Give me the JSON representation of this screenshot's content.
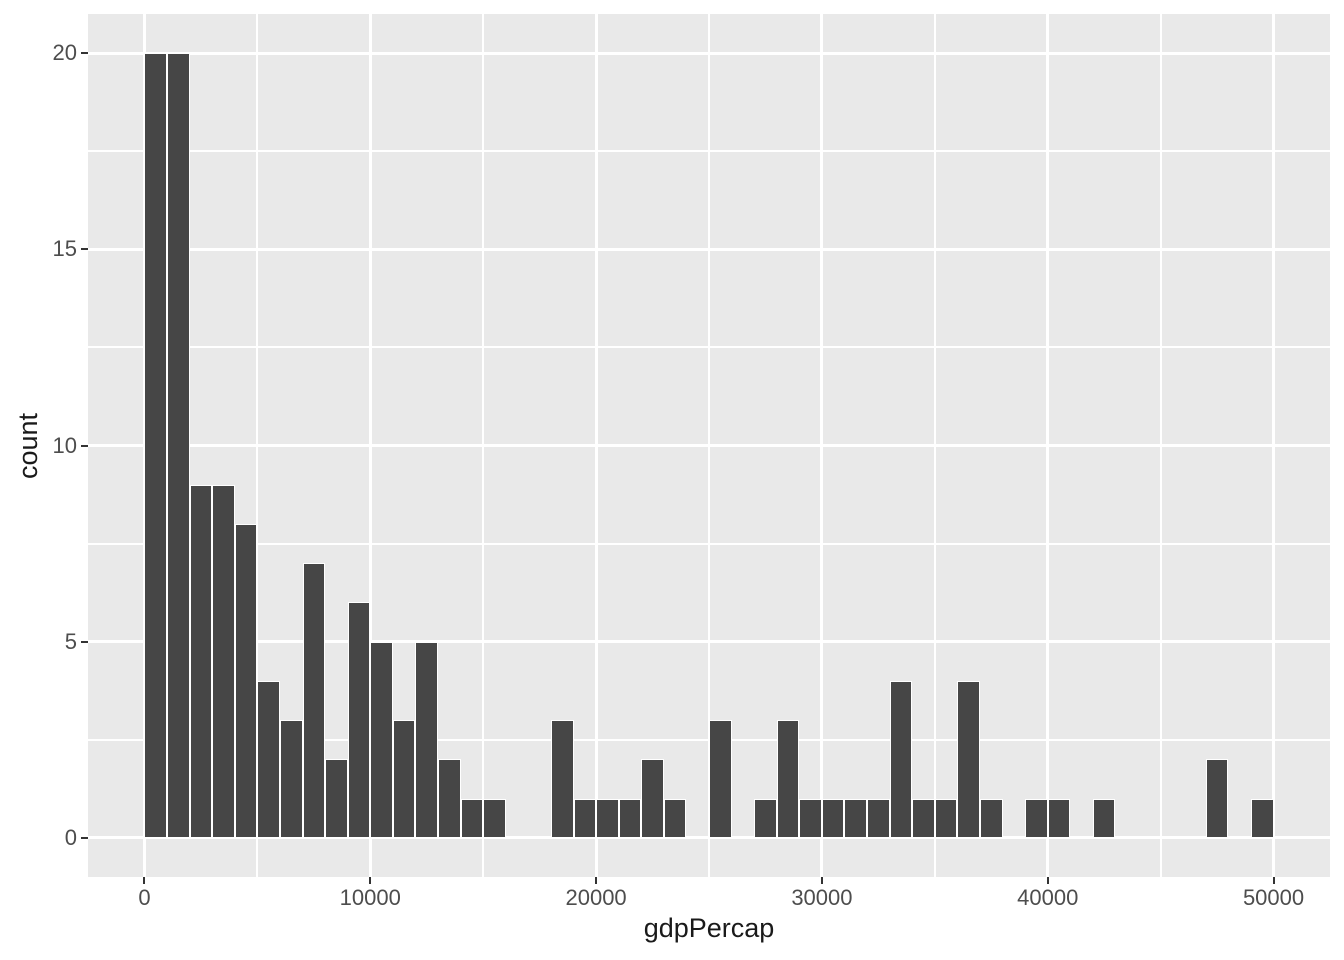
{
  "figure": {
    "background": "#FFFFFF",
    "panel_background": "#E9E9E9",
    "bar_fill": "#464646",
    "bar_stroke": "#FFFFFF",
    "gridline_color": "#FFFFFF",
    "tick_mark_color": "#333333",
    "tick_label_color": "#4D4D4D",
    "axis_title_color": "#1A1A1A"
  },
  "chart_data": {
    "type": "bar",
    "subtype": "histogram",
    "title": "",
    "xlabel": "gdpPercap",
    "ylabel": "count",
    "grid": "on",
    "legend": "none",
    "bin_start": 0,
    "bin_width": 1000,
    "bin_counts": [
      20,
      20,
      9,
      9,
      8,
      4,
      3,
      7,
      2,
      6,
      5,
      3,
      5,
      2,
      1,
      1,
      0,
      0,
      3,
      1,
      1,
      1,
      2,
      1,
      0,
      3,
      0,
      1,
      3,
      1,
      1,
      1,
      1,
      4,
      1,
      1,
      4,
      1,
      0,
      1,
      1,
      0,
      1,
      0,
      0,
      0,
      0,
      2,
      0,
      1
    ],
    "total_count": 142,
    "xlim": [
      0,
      50000
    ],
    "ylim": [
      0,
      20
    ],
    "expansion": 0.05,
    "x_major_ticks": [
      0,
      10000,
      20000,
      30000,
      40000,
      50000
    ],
    "x_tick_labels": [
      "0",
      "10000",
      "20000",
      "30000",
      "40000",
      "50000"
    ],
    "x_minor_ticks": [
      5000,
      15000,
      25000,
      35000,
      45000
    ],
    "y_major_ticks": [
      0,
      5,
      10,
      15,
      20
    ],
    "y_tick_labels": [
      "0",
      "5",
      "10",
      "15",
      "20"
    ],
    "y_minor_ticks": [
      2.5,
      7.5,
      12.5,
      17.5
    ]
  }
}
